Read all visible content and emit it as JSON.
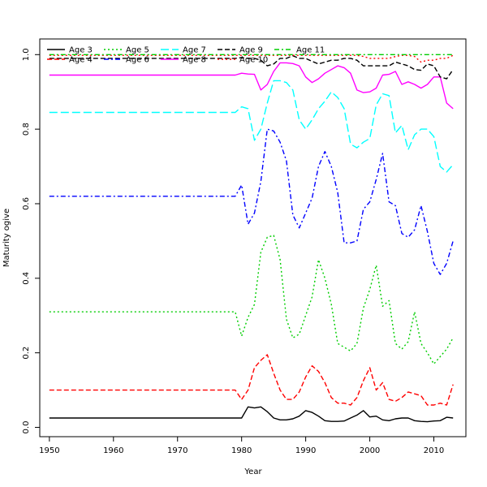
{
  "chart_data": {
    "type": "line",
    "title": "",
    "xlabel": "Year",
    "ylabel": "Maturity ogive",
    "xlim": [
      1948.5,
      2015
    ],
    "ylim": [
      -0.025,
      1.042
    ],
    "x_ticks": [
      1950,
      1960,
      1970,
      1980,
      1990,
      2000,
      2010
    ],
    "y_ticks": [
      0.0,
      0.2,
      0.4,
      0.6,
      0.8,
      1.0
    ],
    "y_tick_labels": [
      "0.0",
      "0.2",
      "0.4",
      "0.6",
      "0.8",
      "1.0"
    ],
    "grid": false,
    "legend_position": "top",
    "x": [
      1950,
      1951,
      1952,
      1953,
      1954,
      1955,
      1956,
      1957,
      1958,
      1959,
      1960,
      1961,
      1962,
      1963,
      1964,
      1965,
      1966,
      1967,
      1968,
      1969,
      1970,
      1971,
      1972,
      1973,
      1974,
      1975,
      1976,
      1977,
      1978,
      1979,
      1980,
      1981,
      1982,
      1983,
      1984,
      1985,
      1986,
      1987,
      1988,
      1989,
      1990,
      1991,
      1992,
      1993,
      1994,
      1995,
      1996,
      1997,
      1998,
      1999,
      2000,
      2001,
      2002,
      2003,
      2004,
      2005,
      2006,
      2007,
      2008,
      2009,
      2010,
      2011,
      2012,
      2013
    ],
    "series": [
      {
        "name": "Age 3",
        "color": "#000000",
        "dash": "solid",
        "values": [
          0.025,
          0.025,
          0.025,
          0.025,
          0.025,
          0.025,
          0.025,
          0.025,
          0.025,
          0.025,
          0.025,
          0.025,
          0.025,
          0.025,
          0.025,
          0.025,
          0.025,
          0.025,
          0.025,
          0.025,
          0.025,
          0.025,
          0.025,
          0.025,
          0.025,
          0.025,
          0.025,
          0.025,
          0.025,
          0.025,
          0.025,
          0.055,
          0.052,
          0.055,
          0.042,
          0.025,
          0.02,
          0.02,
          0.023,
          0.03,
          0.045,
          0.04,
          0.03,
          0.018,
          0.016,
          0.016,
          0.017,
          0.025,
          0.033,
          0.045,
          0.028,
          0.03,
          0.02,
          0.018,
          0.023,
          0.025,
          0.025,
          0.018,
          0.016,
          0.015,
          0.017,
          0.018,
          0.027,
          0.025
        ]
      },
      {
        "name": "Age 4",
        "color": "#ff0000",
        "dash": "dashed",
        "values": [
          0.1,
          0.1,
          0.1,
          0.1,
          0.1,
          0.1,
          0.1,
          0.1,
          0.1,
          0.1,
          0.1,
          0.1,
          0.1,
          0.1,
          0.1,
          0.1,
          0.1,
          0.1,
          0.1,
          0.1,
          0.1,
          0.1,
          0.1,
          0.1,
          0.1,
          0.1,
          0.1,
          0.1,
          0.1,
          0.1,
          0.075,
          0.1,
          0.16,
          0.18,
          0.195,
          0.145,
          0.1,
          0.075,
          0.075,
          0.095,
          0.135,
          0.165,
          0.15,
          0.12,
          0.08,
          0.065,
          0.065,
          0.06,
          0.08,
          0.125,
          0.16,
          0.1,
          0.12,
          0.075,
          0.07,
          0.08,
          0.095,
          0.09,
          0.085,
          0.06,
          0.06,
          0.065,
          0.06,
          0.115
        ]
      },
      {
        "name": "Age 5",
        "color": "#00cd00",
        "dash": "dotted",
        "values": [
          0.31,
          0.31,
          0.31,
          0.31,
          0.31,
          0.31,
          0.31,
          0.31,
          0.31,
          0.31,
          0.31,
          0.31,
          0.31,
          0.31,
          0.31,
          0.31,
          0.31,
          0.31,
          0.31,
          0.31,
          0.31,
          0.31,
          0.31,
          0.31,
          0.31,
          0.31,
          0.31,
          0.31,
          0.31,
          0.31,
          0.245,
          0.295,
          0.33,
          0.47,
          0.51,
          0.515,
          0.45,
          0.29,
          0.24,
          0.25,
          0.3,
          0.35,
          0.45,
          0.4,
          0.33,
          0.225,
          0.215,
          0.205,
          0.225,
          0.32,
          0.37,
          0.435,
          0.325,
          0.34,
          0.225,
          0.21,
          0.23,
          0.31,
          0.225,
          0.2,
          0.17,
          0.19,
          0.21,
          0.24
        ]
      },
      {
        "name": "Age 6",
        "color": "#0000ff",
        "dash": "dashdot",
        "values": [
          0.62,
          0.62,
          0.62,
          0.62,
          0.62,
          0.62,
          0.62,
          0.62,
          0.62,
          0.62,
          0.62,
          0.62,
          0.62,
          0.62,
          0.62,
          0.62,
          0.62,
          0.62,
          0.62,
          0.62,
          0.62,
          0.62,
          0.62,
          0.62,
          0.62,
          0.62,
          0.62,
          0.62,
          0.62,
          0.62,
          0.65,
          0.545,
          0.575,
          0.66,
          0.8,
          0.795,
          0.765,
          0.715,
          0.57,
          0.535,
          0.575,
          0.615,
          0.7,
          0.74,
          0.7,
          0.63,
          0.495,
          0.495,
          0.5,
          0.585,
          0.605,
          0.665,
          0.735,
          0.605,
          0.595,
          0.52,
          0.51,
          0.53,
          0.595,
          0.525,
          0.44,
          0.41,
          0.44,
          0.5
        ]
      },
      {
        "name": "Age 7",
        "color": "#00ffff",
        "dash": "longdash",
        "values": [
          0.845,
          0.845,
          0.845,
          0.845,
          0.845,
          0.845,
          0.845,
          0.845,
          0.845,
          0.845,
          0.845,
          0.845,
          0.845,
          0.845,
          0.845,
          0.845,
          0.845,
          0.845,
          0.845,
          0.845,
          0.845,
          0.845,
          0.845,
          0.845,
          0.845,
          0.845,
          0.845,
          0.845,
          0.845,
          0.845,
          0.86,
          0.855,
          0.77,
          0.8,
          0.87,
          0.93,
          0.93,
          0.925,
          0.905,
          0.825,
          0.8,
          0.825,
          0.855,
          0.875,
          0.9,
          0.885,
          0.855,
          0.76,
          0.75,
          0.765,
          0.775,
          0.865,
          0.895,
          0.89,
          0.79,
          0.81,
          0.745,
          0.785,
          0.8,
          0.8,
          0.78,
          0.7,
          0.685,
          0.705
        ]
      },
      {
        "name": "Age 8",
        "color": "#ff00ff",
        "dash": "solid",
        "values": [
          0.945,
          0.945,
          0.945,
          0.945,
          0.945,
          0.945,
          0.945,
          0.945,
          0.945,
          0.945,
          0.945,
          0.945,
          0.945,
          0.945,
          0.945,
          0.945,
          0.945,
          0.945,
          0.945,
          0.945,
          0.945,
          0.945,
          0.945,
          0.945,
          0.945,
          0.945,
          0.945,
          0.945,
          0.945,
          0.945,
          0.95,
          0.948,
          0.947,
          0.905,
          0.92,
          0.955,
          0.978,
          0.978,
          0.976,
          0.97,
          0.94,
          0.925,
          0.935,
          0.95,
          0.96,
          0.97,
          0.965,
          0.95,
          0.905,
          0.898,
          0.9,
          0.91,
          0.945,
          0.947,
          0.955,
          0.92,
          0.927,
          0.92,
          0.91,
          0.92,
          0.94,
          0.94,
          0.87,
          0.855
        ]
      },
      {
        "name": "Age 9",
        "color": "#000000",
        "dash": "dashed",
        "values": [
          0.99,
          0.99,
          0.99,
          0.99,
          0.99,
          0.99,
          0.99,
          0.99,
          0.99,
          0.99,
          0.99,
          0.99,
          0.99,
          0.99,
          0.99,
          0.99,
          0.99,
          0.99,
          0.99,
          0.99,
          0.99,
          0.99,
          0.99,
          0.99,
          0.99,
          0.99,
          0.99,
          0.99,
          0.99,
          0.99,
          0.992,
          0.99,
          0.99,
          0.985,
          0.97,
          0.975,
          0.99,
          0.99,
          0.997,
          0.99,
          0.99,
          0.982,
          0.975,
          0.98,
          0.985,
          0.985,
          0.99,
          0.99,
          0.985,
          0.97,
          0.97,
          0.97,
          0.97,
          0.97,
          0.98,
          0.975,
          0.97,
          0.96,
          0.958,
          0.975,
          0.97,
          0.94,
          0.935,
          0.96
        ]
      },
      {
        "name": "Age 10",
        "color": "#ff0000",
        "dash": "dotted",
        "values": [
          0.998,
          0.998,
          0.998,
          0.998,
          0.998,
          0.998,
          0.998,
          0.998,
          0.998,
          0.998,
          0.998,
          0.998,
          0.998,
          0.998,
          0.998,
          0.998,
          0.998,
          0.998,
          0.998,
          0.998,
          0.998,
          0.998,
          0.998,
          0.998,
          0.998,
          0.998,
          0.998,
          0.998,
          0.998,
          0.998,
          0.998,
          0.998,
          0.998,
          0.998,
          0.998,
          0.998,
          0.998,
          0.998,
          0.998,
          0.998,
          0.998,
          0.998,
          0.998,
          0.998,
          0.998,
          0.998,
          0.998,
          0.998,
          0.998,
          0.995,
          0.99,
          0.99,
          0.99,
          0.99,
          0.995,
          0.998,
          0.998,
          0.995,
          0.98,
          0.985,
          0.985,
          0.99,
          0.99,
          0.998
        ]
      },
      {
        "name": "Age 11",
        "color": "#00cd00",
        "dash": "dashdot",
        "values": [
          1.0,
          1.0,
          1.0,
          1.0,
          1.0,
          1.0,
          1.0,
          1.0,
          1.0,
          1.0,
          1.0,
          1.0,
          1.0,
          1.0,
          1.0,
          1.0,
          1.0,
          1.0,
          1.0,
          1.0,
          1.0,
          1.0,
          1.0,
          1.0,
          1.0,
          1.0,
          1.0,
          1.0,
          1.0,
          1.0,
          1.0,
          1.0,
          1.0,
          1.0,
          1.0,
          1.0,
          1.0,
          1.0,
          1.0,
          1.0,
          1.0,
          1.0,
          1.0,
          1.0,
          1.0,
          1.0,
          1.0,
          1.0,
          1.0,
          1.0,
          1.0,
          1.0,
          1.0,
          1.0,
          1.0,
          1.0,
          1.0,
          1.0,
          1.0,
          1.0,
          1.0,
          1.0,
          1.0,
          1.0
        ]
      }
    ]
  }
}
